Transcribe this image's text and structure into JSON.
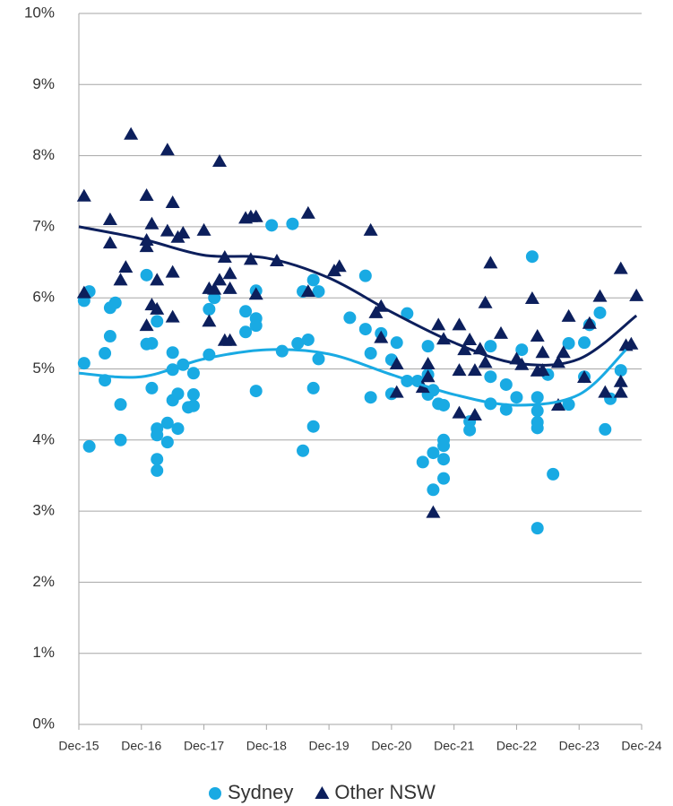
{
  "chart_data": {
    "type": "scatter",
    "xlim": [
      "Dec-15",
      "Dec-24"
    ],
    "xticks": [
      "Dec-15",
      "Dec-16",
      "Dec-17",
      "Dec-18",
      "Dec-19",
      "Dec-20",
      "Dec-21",
      "Dec-22",
      "Dec-23",
      "Dec-24"
    ],
    "ylim": [
      0,
      10
    ],
    "yticks": [
      {
        "value": 0,
        "label": "0%"
      },
      {
        "value": 1,
        "label": "1%"
      },
      {
        "value": 2,
        "label": "2%"
      },
      {
        "value": 3,
        "label": "3%"
      },
      {
        "value": 4,
        "label": "4%"
      },
      {
        "value": 5,
        "label": "5%"
      },
      {
        "value": 6,
        "label": "6%"
      },
      {
        "value": 7,
        "label": "7%"
      },
      {
        "value": 8,
        "label": "8%"
      },
      {
        "value": 9,
        "label": "9%"
      },
      {
        "value": 10,
        "label": "10%"
      }
    ],
    "grid": true,
    "legend": "bottom",
    "series": [
      {
        "name": "Sydney",
        "color": "#19aae3",
        "marker": "circle",
        "x": [
          "Jan-16",
          "Jan-16",
          "Feb-16",
          "Feb-16",
          "May-16",
          "May-16",
          "Jun-16",
          "Jun-16",
          "Jul-16",
          "Aug-16",
          "Aug-16",
          "Jan-17",
          "Jan-17",
          "Feb-17",
          "Feb-17",
          "Mar-17",
          "Mar-17",
          "Mar-17",
          "Mar-17",
          "Mar-17",
          "May-17",
          "May-17",
          "Jun-17",
          "Jun-17",
          "Jun-17",
          "Jul-17",
          "Jul-17",
          "Aug-17",
          "Sep-17",
          "Oct-17",
          "Oct-17",
          "Oct-17",
          "Jan-18",
          "Jan-18",
          "Feb-18",
          "Aug-18",
          "Aug-18",
          "Oct-18",
          "Oct-18",
          "Oct-18",
          "Oct-18",
          "Jan-19",
          "Mar-19",
          "May-19",
          "Jun-19",
          "Jul-19",
          "Aug-19",
          "Jul-19",
          "Sep-19",
          "Sep-19",
          "Sep-19",
          "Oct-19",
          "Oct-19",
          "Apr-20",
          "Jul-20",
          "Jul-20",
          "Aug-20",
          "Aug-20",
          "Oct-20",
          "Dec-20",
          "Dec-20",
          "Jan-21",
          "Mar-21",
          "Mar-21",
          "May-21",
          "Jun-21",
          "Jul-21",
          "Jul-21",
          "Jul-21",
          "Aug-21",
          "Aug-21",
          "Aug-21",
          "Sep-21",
          "Oct-21",
          "Oct-21",
          "Oct-21",
          "Oct-21",
          "Oct-21",
          "Mar-22",
          "Mar-22",
          "Jul-22",
          "Jul-22",
          "Jul-22",
          "Oct-22",
          "Oct-22",
          "Dec-22",
          "Jan-23",
          "Mar-23",
          "Apr-23",
          "Apr-23",
          "Apr-23",
          "Apr-23",
          "Apr-23",
          "Jun-23",
          "Jul-23",
          "Oct-23",
          "Oct-23",
          "Jan-24",
          "Jan-24",
          "Feb-24",
          "Apr-24",
          "May-24",
          "Jun-24",
          "Aug-24"
        ],
        "values": [
          5.08,
          5.96,
          6.09,
          3.91,
          5.22,
          4.84,
          5.46,
          5.86,
          5.93,
          4.5,
          4.0,
          5.35,
          6.32,
          5.36,
          4.73,
          5.67,
          4.16,
          4.07,
          3.73,
          3.57,
          4.24,
          3.97,
          5.23,
          4.56,
          4.99,
          4.65,
          4.16,
          5.06,
          4.46,
          4.94,
          4.48,
          4.64,
          5.84,
          5.2,
          6.0,
          5.81,
          5.52,
          5.71,
          6.1,
          5.61,
          4.69,
          7.02,
          5.25,
          7.04,
          5.36,
          3.85,
          5.41,
          6.09,
          6.25,
          4.73,
          4.19,
          5.14,
          6.09,
          5.72,
          6.31,
          5.56,
          4.6,
          5.22,
          5.5,
          5.13,
          4.65,
          5.37,
          5.78,
          4.83,
          4.83,
          3.69,
          5.32,
          4.92,
          4.64,
          3.82,
          3.3,
          4.7,
          4.51,
          4.0,
          4.49,
          3.92,
          3.73,
          3.46,
          4.26,
          4.14,
          5.32,
          4.89,
          4.51,
          4.43,
          4.78,
          4.6,
          5.27,
          6.58,
          4.25,
          2.76,
          4.41,
          4.6,
          4.17,
          4.92,
          3.52,
          5.36,
          4.5,
          5.37,
          4.89,
          5.62,
          5.79,
          4.15,
          4.58,
          4.98
        ],
        "trend": {
          "x": [
            "Dec-15",
            "Dec-16",
            "Dec-17",
            "Dec-18",
            "Dec-19",
            "Dec-20",
            "Dec-21",
            "Dec-22",
            "Dec-23",
            "Sep-24"
          ],
          "values": [
            4.94,
            4.89,
            5.14,
            5.27,
            5.21,
            4.92,
            4.64,
            4.49,
            4.64,
            5.27
          ]
        }
      },
      {
        "name": "Other NSW",
        "color": "#0c1f5c",
        "marker": "triangle",
        "x": [
          "Jan-16",
          "Jan-16",
          "Jun-16",
          "Jun-16",
          "Aug-16",
          "Sep-16",
          "Oct-16",
          "Jan-17",
          "Jan-17",
          "Jan-17",
          "Jan-17",
          "Feb-17",
          "Feb-17",
          "Mar-17",
          "Mar-17",
          "May-17",
          "May-17",
          "Jun-17",
          "Jun-17",
          "Jun-17",
          "Jul-17",
          "Aug-17",
          "Dec-17",
          "Jan-18",
          "Jan-18",
          "Feb-18",
          "Mar-18",
          "Mar-18",
          "Apr-18",
          "Apr-18",
          "May-18",
          "May-18",
          "May-18",
          "Aug-18",
          "Sep-18",
          "Sep-18",
          "Oct-18",
          "Oct-18",
          "Feb-19",
          "Aug-19",
          "Aug-19",
          "Jan-20",
          "Feb-20",
          "Aug-20",
          "Sep-20",
          "Oct-20",
          "Oct-20",
          "Jan-21",
          "Jan-21",
          "Jun-21",
          "Jul-21",
          "Jul-21",
          "Aug-21",
          "Sep-21",
          "Oct-21",
          "Jan-22",
          "Jan-22",
          "Jan-22",
          "Feb-22",
          "Mar-22",
          "Apr-22",
          "Apr-22",
          "May-22",
          "Jun-22",
          "Jun-22",
          "Jul-22",
          "Sep-22",
          "Dec-22",
          "Jan-23",
          "Mar-23",
          "Apr-23",
          "Apr-23",
          "May-23",
          "May-23",
          "Aug-23",
          "Aug-23",
          "Sep-23",
          "Oct-23",
          "Jan-24",
          "Feb-24",
          "Apr-24",
          "May-24",
          "Aug-24",
          "Aug-24",
          "Aug-24",
          "Sep-24",
          "Oct-24",
          "Nov-24"
        ],
        "values": [
          7.43,
          6.07,
          6.77,
          7.1,
          6.25,
          6.43,
          8.3,
          6.81,
          7.44,
          6.72,
          5.61,
          7.04,
          5.9,
          5.84,
          6.25,
          8.08,
          6.94,
          7.34,
          6.36,
          5.73,
          6.85,
          6.91,
          6.95,
          6.13,
          5.67,
          6.12,
          7.92,
          6.25,
          5.4,
          6.57,
          5.4,
          6.34,
          6.13,
          7.12,
          7.14,
          6.54,
          6.05,
          7.14,
          6.52,
          7.19,
          6.09,
          6.38,
          6.44,
          6.95,
          5.79,
          5.88,
          5.44,
          5.07,
          4.67,
          4.74,
          5.07,
          4.89,
          2.98,
          5.62,
          5.42,
          5.62,
          4.98,
          4.38,
          5.27,
          5.41,
          4.35,
          4.98,
          5.28,
          5.93,
          5.09,
          6.49,
          5.5,
          5.14,
          5.06,
          5.99,
          5.46,
          4.97,
          5.23,
          4.98,
          4.49,
          5.09,
          5.23,
          5.74,
          4.88,
          5.64,
          6.02,
          4.67,
          4.67,
          6.41,
          4.82,
          5.33,
          5.35,
          6.03
        ],
        "trend": {
          "x": [
            "Dec-15",
            "Dec-16",
            "Dec-17",
            "Dec-18",
            "Dec-19",
            "Dec-20",
            "Dec-21",
            "Dec-22",
            "Dec-23",
            "Nov-24"
          ],
          "values": [
            7.0,
            6.83,
            6.6,
            6.56,
            6.28,
            5.8,
            5.37,
            5.08,
            5.14,
            5.75
          ]
        }
      }
    ]
  }
}
